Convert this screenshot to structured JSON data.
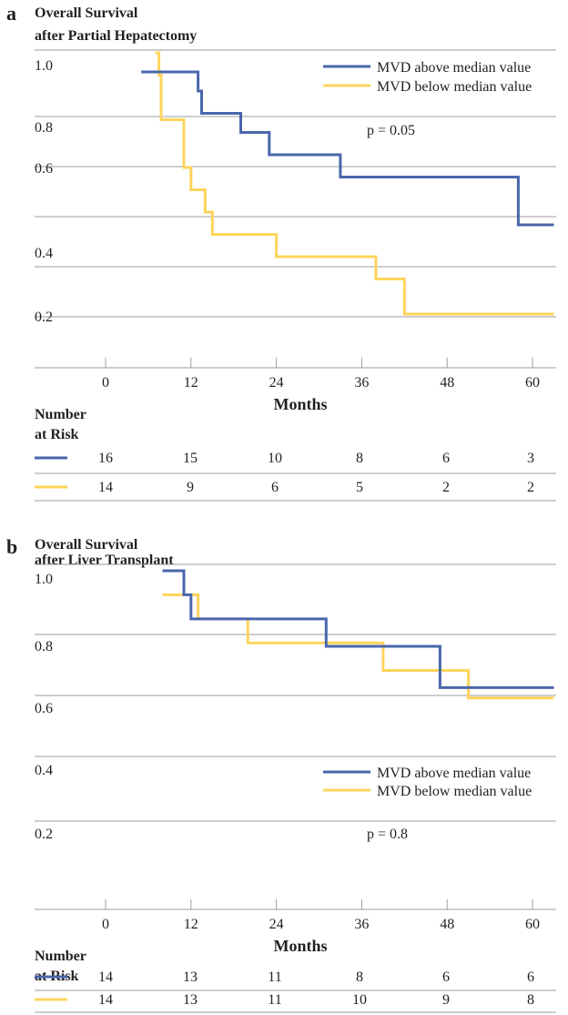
{
  "colors": {
    "above": "#4a66ad",
    "below": "#fdd45c",
    "grid": "#9c9c9c",
    "text": "#231f20"
  },
  "risk_table_label": [
    "Number",
    "at Risk"
  ],
  "chart_data": [
    {
      "type": "line",
      "panel_label": "a",
      "title": [
        "Overall Survival",
        "after Partial Hepatectomy"
      ],
      "xlabel": "Months",
      "ylabel": "",
      "x_ticks": [
        0,
        12,
        24,
        36,
        48,
        60
      ],
      "y_ticks": [
        "1.0",
        "0.8",
        "0.6",
        "0.4",
        "0.2"
      ],
      "xlim": [
        -10,
        66
      ],
      "ylim": [
        0.1,
        1.0
      ],
      "grid": true,
      "legend_position": "top-right",
      "annotation": "p = 0.05",
      "series": [
        {
          "name": "MVD above median value",
          "color_key": "above",
          "points": [
            [
              5,
              0.94
            ],
            [
              13,
              0.94
            ],
            [
              13,
              0.88
            ],
            [
              13.5,
              0.88
            ],
            [
              13.5,
              0.81
            ],
            [
              19,
              0.81
            ],
            [
              19,
              0.75
            ],
            [
              23,
              0.75
            ],
            [
              23,
              0.68
            ],
            [
              33,
              0.68
            ],
            [
              33,
              0.61
            ],
            [
              58,
              0.61
            ],
            [
              58,
              0.46
            ],
            [
              63,
              0.46
            ]
          ]
        },
        {
          "name": "MVD below median value",
          "color_key": "below",
          "points": [
            [
              7,
              1.0
            ],
            [
              7.5,
              1.0
            ],
            [
              7.5,
              0.93
            ],
            [
              7.8,
              0.93
            ],
            [
              7.8,
              0.79
            ],
            [
              11,
              0.79
            ],
            [
              11,
              0.64
            ],
            [
              12,
              0.64
            ],
            [
              12,
              0.57
            ],
            [
              14,
              0.57
            ],
            [
              14,
              0.5
            ],
            [
              15,
              0.5
            ],
            [
              15,
              0.43
            ],
            [
              24,
              0.43
            ],
            [
              24,
              0.36
            ],
            [
              38,
              0.36
            ],
            [
              38,
              0.29
            ],
            [
              42,
              0.29
            ],
            [
              42,
              0.18
            ],
            [
              63,
              0.18
            ]
          ]
        }
      ],
      "risk_table": {
        "rows": [
          {
            "color_key": "above",
            "values": [
              "16",
              "15",
              "10",
              "8",
              "6",
              "3"
            ]
          },
          {
            "color_key": "below",
            "values": [
              "14",
              "9",
              "6",
              "5",
              "2",
              "2"
            ]
          }
        ]
      }
    },
    {
      "type": "line",
      "panel_label": "b",
      "title": [
        "Overall Survival",
        "after Liver Transplant"
      ],
      "xlabel": "Months",
      "ylabel": "",
      "x_ticks": [
        0,
        12,
        24,
        36,
        48,
        60
      ],
      "y_ticks": [
        "1.0",
        "0.8",
        "0.6",
        "0.4",
        "0.2"
      ],
      "xlim": [
        -10,
        66
      ],
      "ylim": [
        0.1,
        1.0
      ],
      "grid": true,
      "legend_position": "center-right",
      "annotation": "p = 0.8",
      "series": [
        {
          "name": "MVD above median value",
          "color_key": "above",
          "points": [
            [
              8,
              1.0
            ],
            [
              11,
              1.0
            ],
            [
              11,
              0.93
            ],
            [
              12,
              0.93
            ],
            [
              12,
              0.86
            ],
            [
              31,
              0.86
            ],
            [
              31,
              0.78
            ],
            [
              47,
              0.78
            ],
            [
              47,
              0.66
            ],
            [
              63,
              0.66
            ]
          ]
        },
        {
          "name": "MVD below median value",
          "color_key": "below",
          "points": [
            [
              8,
              0.93
            ],
            [
              13,
              0.93
            ],
            [
              13,
              0.86
            ],
            [
              20,
              0.86
            ],
            [
              20,
              0.79
            ],
            [
              39,
              0.79
            ],
            [
              39,
              0.71
            ],
            [
              51,
              0.71
            ],
            [
              51,
              0.63
            ],
            [
              63,
              0.63
            ]
          ]
        }
      ],
      "risk_table": {
        "rows": [
          {
            "color_key": "above",
            "values": [
              "14",
              "13",
              "11",
              "8",
              "6",
              "6"
            ]
          },
          {
            "color_key": "below",
            "values": [
              "14",
              "13",
              "11",
              "10",
              "9",
              "8"
            ]
          }
        ]
      }
    }
  ]
}
